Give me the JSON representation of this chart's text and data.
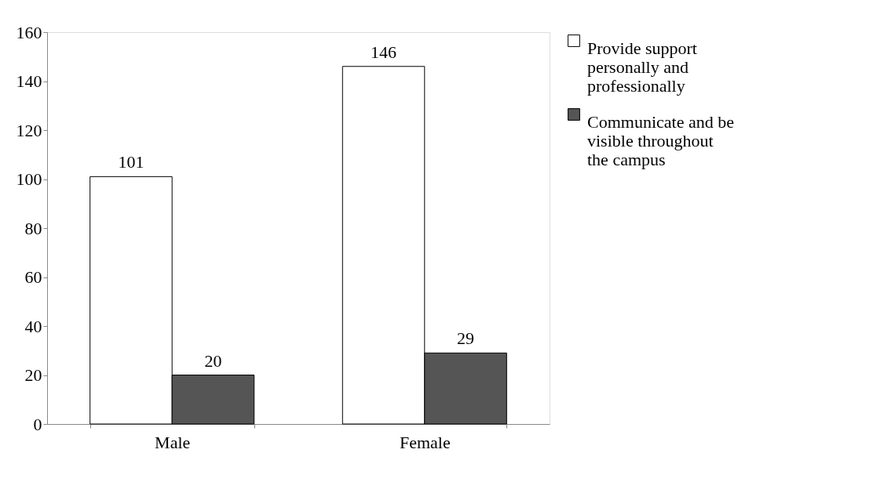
{
  "chart_data": {
    "type": "bar",
    "categories": [
      "Male",
      "Female"
    ],
    "series": [
      {
        "name": "Provide support personally and professionally",
        "color": "#ffffff",
        "values": [
          101,
          146
        ]
      },
      {
        "name": "Communicate and be visible throughout the campus",
        "color": "#555555",
        "values": [
          20,
          29
        ]
      }
    ],
    "ylim": [
      0,
      160
    ],
    "yticks": [
      0,
      20,
      40,
      60,
      80,
      100,
      120,
      140,
      160
    ],
    "data_labels": true,
    "grid": false,
    "legend": "right"
  }
}
